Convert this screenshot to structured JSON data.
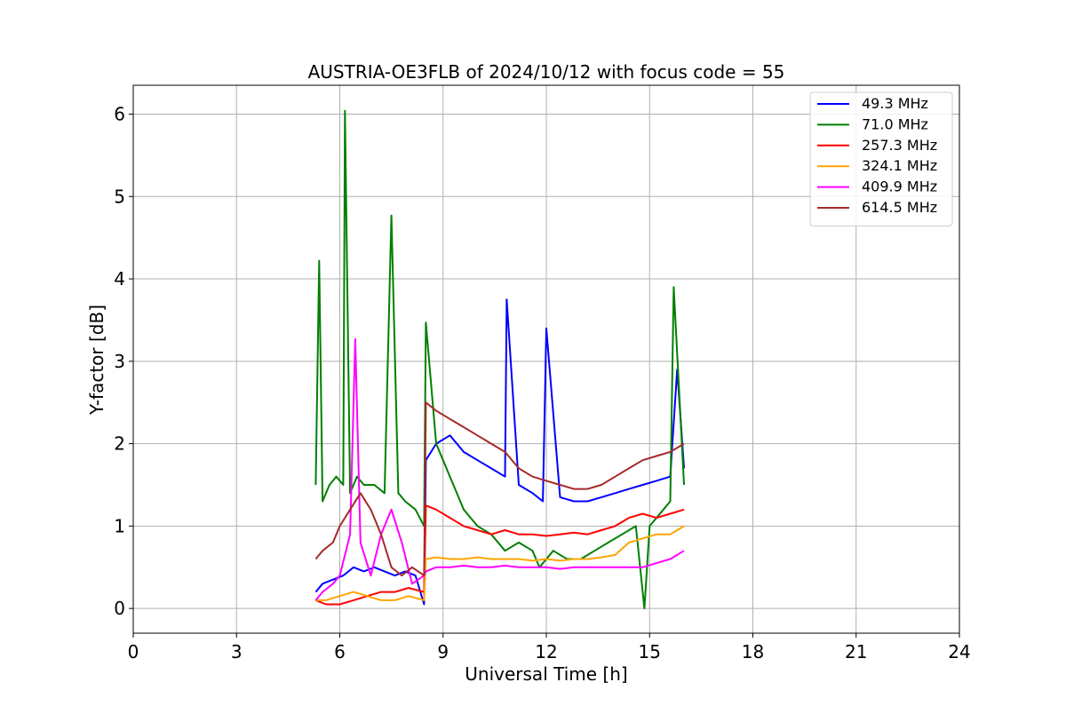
{
  "chart_data": {
    "type": "line",
    "title": "AUSTRIA-OE3FLB of 2024/10/12 with focus code = 55",
    "xlabel": "Universal Time [h]",
    "ylabel": "Y-factor [dB]",
    "xlim": [
      0,
      24
    ],
    "ylim": [
      -0.3,
      6.35
    ],
    "xticks": [
      "0",
      "3",
      "6",
      "9",
      "12",
      "15",
      "18",
      "21",
      "24"
    ],
    "yticks": [
      "0",
      "1",
      "2",
      "3",
      "4",
      "5",
      "6"
    ],
    "grid": true,
    "legend_position": "top-right",
    "series": [
      {
        "name": "49.3 MHz",
        "color": "#0000ff",
        "x": [
          5.3,
          5.5,
          5.8,
          6.1,
          6.4,
          6.7,
          7.0,
          7.3,
          7.6,
          7.9,
          8.2,
          8.45,
          8.5,
          8.8,
          9.2,
          9.6,
          10.0,
          10.4,
          10.8,
          10.85,
          11.2,
          11.6,
          11.9,
          12.0,
          12.4,
          12.8,
          13.2,
          13.6,
          14.0,
          14.4,
          14.8,
          15.2,
          15.6,
          15.8,
          16.0
        ],
        "y": [
          0.2,
          0.3,
          0.35,
          0.4,
          0.5,
          0.45,
          0.5,
          0.45,
          0.4,
          0.45,
          0.4,
          0.05,
          1.8,
          2.0,
          2.1,
          1.9,
          1.8,
          1.7,
          1.6,
          3.75,
          1.5,
          1.4,
          1.3,
          3.4,
          1.35,
          1.3,
          1.3,
          1.35,
          1.4,
          1.45,
          1.5,
          1.55,
          1.6,
          2.9,
          1.7
        ]
      },
      {
        "name": "71.0 MHz",
        "color": "#008000",
        "x": [
          5.3,
          5.4,
          5.5,
          5.7,
          5.9,
          6.1,
          6.15,
          6.3,
          6.5,
          6.7,
          7.0,
          7.3,
          7.5,
          7.7,
          7.9,
          8.2,
          8.45,
          8.5,
          8.8,
          9.2,
          9.6,
          10.0,
          10.4,
          10.8,
          11.2,
          11.6,
          11.8,
          12.2,
          12.6,
          13.0,
          13.4,
          13.8,
          14.2,
          14.6,
          14.85,
          15.0,
          15.4,
          15.6,
          15.7,
          16.0
        ],
        "y": [
          1.5,
          4.22,
          1.3,
          1.5,
          1.6,
          1.5,
          6.04,
          1.4,
          1.6,
          1.5,
          1.5,
          1.4,
          4.77,
          1.4,
          1.3,
          1.2,
          1.0,
          3.47,
          2.0,
          1.6,
          1.2,
          1.0,
          0.9,
          0.7,
          0.8,
          0.7,
          0.5,
          0.7,
          0.6,
          0.6,
          0.7,
          0.8,
          0.9,
          1.0,
          0.0,
          1.0,
          1.2,
          1.3,
          3.9,
          1.5
        ]
      },
      {
        "name": "257.3 MHz",
        "color": "#ff0000",
        "x": [
          5.3,
          5.6,
          6.0,
          6.4,
          6.8,
          7.2,
          7.6,
          8.0,
          8.45,
          8.5,
          8.8,
          9.2,
          9.6,
          10.0,
          10.4,
          10.8,
          11.2,
          11.6,
          12.0,
          12.4,
          12.8,
          13.2,
          13.6,
          14.0,
          14.4,
          14.8,
          15.2,
          15.6,
          16.0
        ],
        "y": [
          0.1,
          0.05,
          0.05,
          0.1,
          0.15,
          0.2,
          0.2,
          0.25,
          0.2,
          1.25,
          1.2,
          1.1,
          1.0,
          0.95,
          0.9,
          0.95,
          0.9,
          0.9,
          0.88,
          0.9,
          0.92,
          0.9,
          0.95,
          1.0,
          1.1,
          1.15,
          1.1,
          1.15,
          1.2
        ]
      },
      {
        "name": "324.1 MHz",
        "color": "#ffa500",
        "x": [
          5.3,
          5.6,
          6.0,
          6.4,
          6.8,
          7.2,
          7.6,
          8.0,
          8.45,
          8.5,
          8.8,
          9.2,
          9.6,
          10.0,
          10.4,
          10.8,
          11.2,
          11.6,
          12.0,
          12.4,
          12.8,
          13.2,
          13.6,
          14.0,
          14.4,
          14.8,
          15.2,
          15.6,
          16.0
        ],
        "y": [
          0.1,
          0.1,
          0.15,
          0.2,
          0.15,
          0.1,
          0.1,
          0.15,
          0.1,
          0.6,
          0.62,
          0.6,
          0.6,
          0.62,
          0.6,
          0.6,
          0.6,
          0.58,
          0.6,
          0.58,
          0.6,
          0.6,
          0.62,
          0.65,
          0.8,
          0.85,
          0.9,
          0.9,
          1.0
        ]
      },
      {
        "name": "409.9 MHz",
        "color": "#ff00ff",
        "x": [
          5.3,
          5.5,
          5.8,
          6.0,
          6.3,
          6.45,
          6.6,
          6.9,
          7.2,
          7.5,
          7.8,
          8.1,
          8.45,
          8.5,
          8.8,
          9.2,
          9.6,
          10.0,
          10.4,
          10.8,
          11.2,
          11.6,
          12.0,
          12.4,
          12.8,
          13.2,
          13.6,
          14.0,
          14.4,
          14.8,
          15.2,
          15.6,
          16.0
        ],
        "y": [
          0.1,
          0.2,
          0.3,
          0.4,
          0.9,
          3.27,
          0.8,
          0.4,
          0.9,
          1.2,
          0.8,
          0.3,
          0.4,
          0.45,
          0.5,
          0.5,
          0.52,
          0.5,
          0.5,
          0.52,
          0.5,
          0.5,
          0.5,
          0.48,
          0.5,
          0.5,
          0.5,
          0.5,
          0.5,
          0.5,
          0.55,
          0.6,
          0.7
        ]
      },
      {
        "name": "614.5 MHz",
        "color": "#a52a2a",
        "x": [
          5.3,
          5.5,
          5.8,
          6.0,
          6.3,
          6.6,
          6.9,
          7.2,
          7.5,
          7.8,
          8.1,
          8.45,
          8.5,
          8.8,
          9.2,
          9.6,
          10.0,
          10.4,
          10.8,
          11.2,
          11.6,
          12.0,
          12.4,
          12.8,
          13.2,
          13.6,
          14.0,
          14.4,
          14.8,
          15.2,
          15.6,
          16.0
        ],
        "y": [
          0.6,
          0.7,
          0.8,
          1.0,
          1.2,
          1.4,
          1.2,
          0.9,
          0.5,
          0.4,
          0.5,
          0.4,
          2.5,
          2.4,
          2.3,
          2.2,
          2.1,
          2.0,
          1.9,
          1.7,
          1.6,
          1.55,
          1.5,
          1.45,
          1.45,
          1.5,
          1.6,
          1.7,
          1.8,
          1.85,
          1.9,
          2.0
        ]
      }
    ]
  }
}
